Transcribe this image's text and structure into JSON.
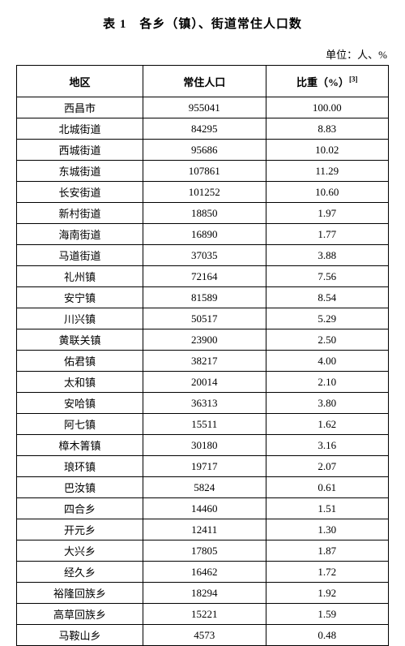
{
  "title": "表 1　各乡（镇）、街道常住人口数",
  "unit": "单位：人、%",
  "footnote_mark": "[3]",
  "columns": [
    "地区",
    "常住人口",
    "比重（%）"
  ],
  "rows": [
    [
      "西昌市",
      "955041",
      "100.00"
    ],
    [
      "北城街道",
      "84295",
      "8.83"
    ],
    [
      "西城街道",
      "95686",
      "10.02"
    ],
    [
      "东城街道",
      "107861",
      "11.29"
    ],
    [
      "长安街道",
      "101252",
      "10.60"
    ],
    [
      "新村街道",
      "18850",
      "1.97"
    ],
    [
      "海南街道",
      "16890",
      "1.77"
    ],
    [
      "马道街道",
      "37035",
      "3.88"
    ],
    [
      "礼州镇",
      "72164",
      "7.56"
    ],
    [
      "安宁镇",
      "81589",
      "8.54"
    ],
    [
      "川兴镇",
      "50517",
      "5.29"
    ],
    [
      "黄联关镇",
      "23900",
      "2.50"
    ],
    [
      "佑君镇",
      "38217",
      "4.00"
    ],
    [
      "太和镇",
      "20014",
      "2.10"
    ],
    [
      "安哈镇",
      "36313",
      "3.80"
    ],
    [
      "阿七镇",
      "15511",
      "1.62"
    ],
    [
      "樟木箐镇",
      "30180",
      "3.16"
    ],
    [
      "琅环镇",
      "19717",
      "2.07"
    ],
    [
      "巴汝镇",
      "5824",
      "0.61"
    ],
    [
      "四合乡",
      "14460",
      "1.51"
    ],
    [
      "开元乡",
      "12411",
      "1.30"
    ],
    [
      "大兴乡",
      "17805",
      "1.87"
    ],
    [
      "经久乡",
      "16462",
      "1.72"
    ],
    [
      "裕隆回族乡",
      "18294",
      "1.92"
    ],
    [
      "高草回族乡",
      "15221",
      "1.59"
    ],
    [
      "马鞍山乡",
      "4573",
      "0.48"
    ]
  ]
}
